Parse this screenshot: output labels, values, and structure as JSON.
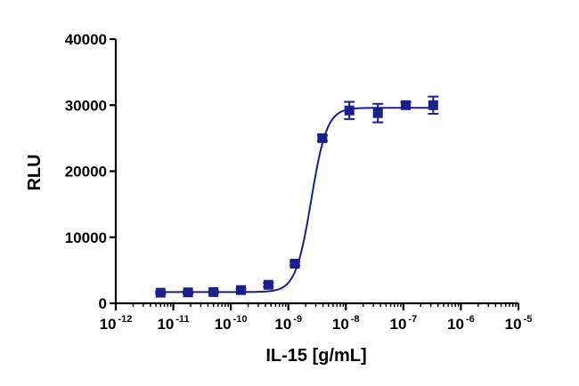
{
  "chart_data": {
    "type": "scatter",
    "title": "",
    "xlabel": "IL-15 [g/mL]",
    "ylabel": "RLU",
    "x_scale": "log",
    "xlim": [
      1e-12,
      1e-05
    ],
    "ylim": [
      0,
      40000
    ],
    "x_ticks": [
      {
        "base": "10",
        "exp": "-12",
        "value": 1e-12
      },
      {
        "base": "10",
        "exp": "-11",
        "value": 1e-11
      },
      {
        "base": "10",
        "exp": "-10",
        "value": 1e-10
      },
      {
        "base": "10",
        "exp": "-9",
        "value": 1e-09
      },
      {
        "base": "10",
        "exp": "-8",
        "value": 1e-08
      },
      {
        "base": "10",
        "exp": "-7",
        "value": 1e-07
      },
      {
        "base": "10",
        "exp": "-6",
        "value": 1e-06
      },
      {
        "base": "10",
        "exp": "-5",
        "value": 1e-05
      }
    ],
    "y_ticks": [
      {
        "label": "0",
        "value": 0
      },
      {
        "label": "10000",
        "value": 10000
      },
      {
        "label": "20000",
        "value": 20000
      },
      {
        "label": "30000",
        "value": 30000
      },
      {
        "label": "40000",
        "value": 40000
      }
    ],
    "grid": false,
    "color": "#1a1f8c",
    "series": [
      {
        "points": [
          {
            "x": 6e-12,
            "y": 1600,
            "err": 150
          },
          {
            "x": 1.8e-11,
            "y": 1650,
            "err": 150
          },
          {
            "x": 5e-11,
            "y": 1700,
            "err": 150
          },
          {
            "x": 1.5e-10,
            "y": 2000,
            "err": 200
          },
          {
            "x": 4.5e-10,
            "y": 2800,
            "err": 300
          },
          {
            "x": 1.3e-09,
            "y": 6000,
            "err": 300
          },
          {
            "x": 3.9e-09,
            "y": 25000,
            "err": 400
          },
          {
            "x": 1.15e-08,
            "y": 29200,
            "err": 1300
          },
          {
            "x": 3.6e-08,
            "y": 28800,
            "err": 1400
          },
          {
            "x": 1.1e-07,
            "y": 30000,
            "err": 400
          },
          {
            "x": 3.3e-07,
            "y": 30000,
            "err": 1300
          }
        ],
        "fit": {
          "model": "4PL",
          "bottom": 1700,
          "top": 29600,
          "ec50": 2.5e-09,
          "hill": 3.2,
          "x_from": 6e-12,
          "x_to": 3.3e-07
        }
      }
    ]
  }
}
